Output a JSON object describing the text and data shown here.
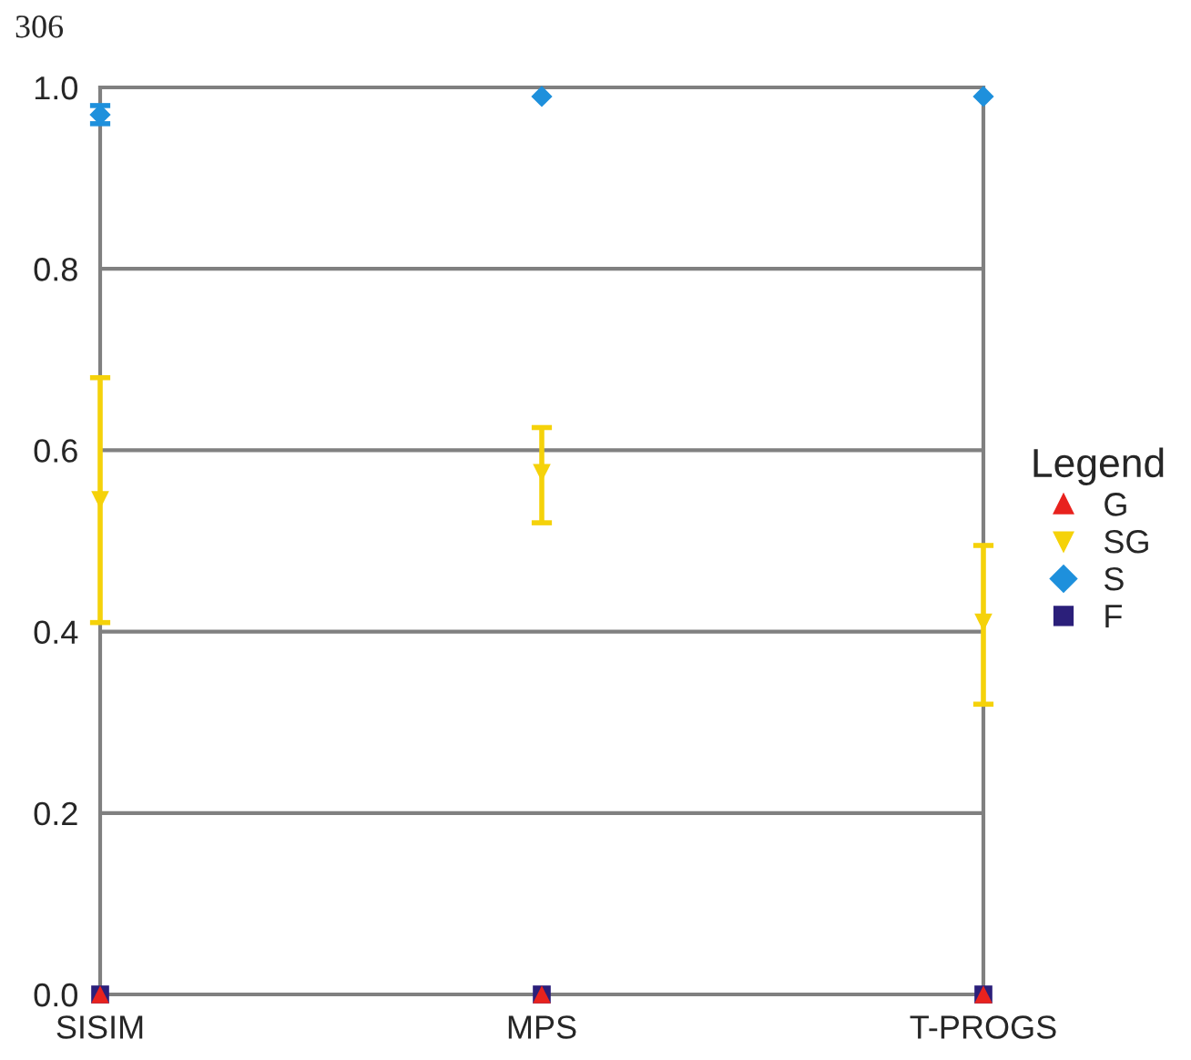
{
  "chart_data": {
    "type": "scatter",
    "categories": [
      "SISIM",
      "MPS",
      "T-PROGS"
    ],
    "series": [
      {
        "name": "G",
        "color": "#e8221e",
        "marker": "triangle",
        "values": [
          0,
          0,
          0
        ]
      },
      {
        "name": "SG",
        "color": "#f5d20a",
        "marker": "triangle_down",
        "values": [
          0.545,
          0.575,
          0.41
        ],
        "errors": [
          [
            0.41,
            0.68
          ],
          [
            0.52,
            0.625
          ],
          [
            0.32,
            0.495
          ]
        ]
      },
      {
        "name": "S",
        "color": "#1e90dc",
        "marker": "diamond",
        "values": [
          0.97,
          0.99,
          0.99
        ],
        "errors": [
          [
            0.96,
            0.98
          ],
          null,
          null
        ]
      },
      {
        "name": "F",
        "color": "#2b1f7a",
        "marker": "square",
        "values": [
          0,
          0,
          0
        ]
      }
    ],
    "ylim": [
      0,
      1.0
    ],
    "yticks": [
      {
        "value": 0,
        "label": "0.0"
      },
      0.2,
      0.4,
      0.6,
      0.8,
      {
        "value": 1.0,
        "label": "1.0"
      }
    ],
    "grid": "y",
    "legend": "right",
    "legend_title": "Legend",
    "annotations": [
      "306"
    ]
  }
}
